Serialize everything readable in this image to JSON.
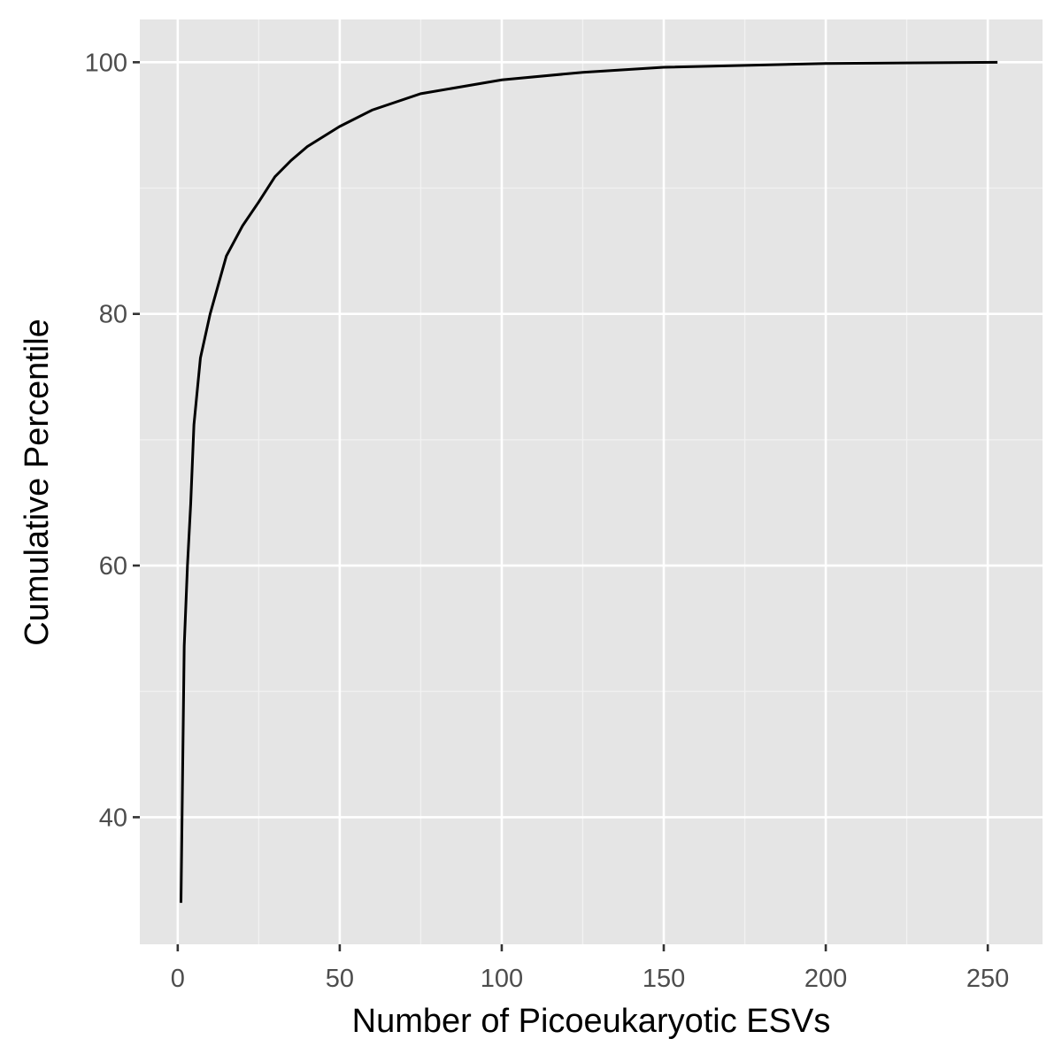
{
  "chart_data": {
    "type": "line",
    "x_label": "Number of Picoeukaryotic ESVs",
    "y_label": "Cumulative Percentile",
    "x": [
      1,
      2,
      3,
      4,
      5,
      7,
      10,
      15,
      20,
      25,
      30,
      35,
      40,
      50,
      60,
      75,
      100,
      125,
      150,
      200,
      253
    ],
    "series": [
      {
        "color": "#000000",
        "values": [
          33.2,
          53.6,
          60,
          64.9,
          71.2,
          76.5,
          80,
          84.6,
          87,
          88.9,
          90.9,
          92.2,
          93.3,
          94.9,
          96.2,
          97.5,
          98.6,
          99.2,
          99.6,
          99.9,
          100
        ]
      }
    ],
    "xlim": [
      -11.7,
      266.9
    ],
    "ylim": [
      29.9,
      103.4
    ],
    "xticks": [
      0,
      50,
      100,
      150,
      200,
      250
    ],
    "yticks": [
      40,
      60,
      80,
      100
    ],
    "x_minor_grid": [
      25,
      75,
      125,
      175,
      225
    ],
    "y_minor_grid": [
      50,
      70,
      90
    ],
    "grid": true
  }
}
